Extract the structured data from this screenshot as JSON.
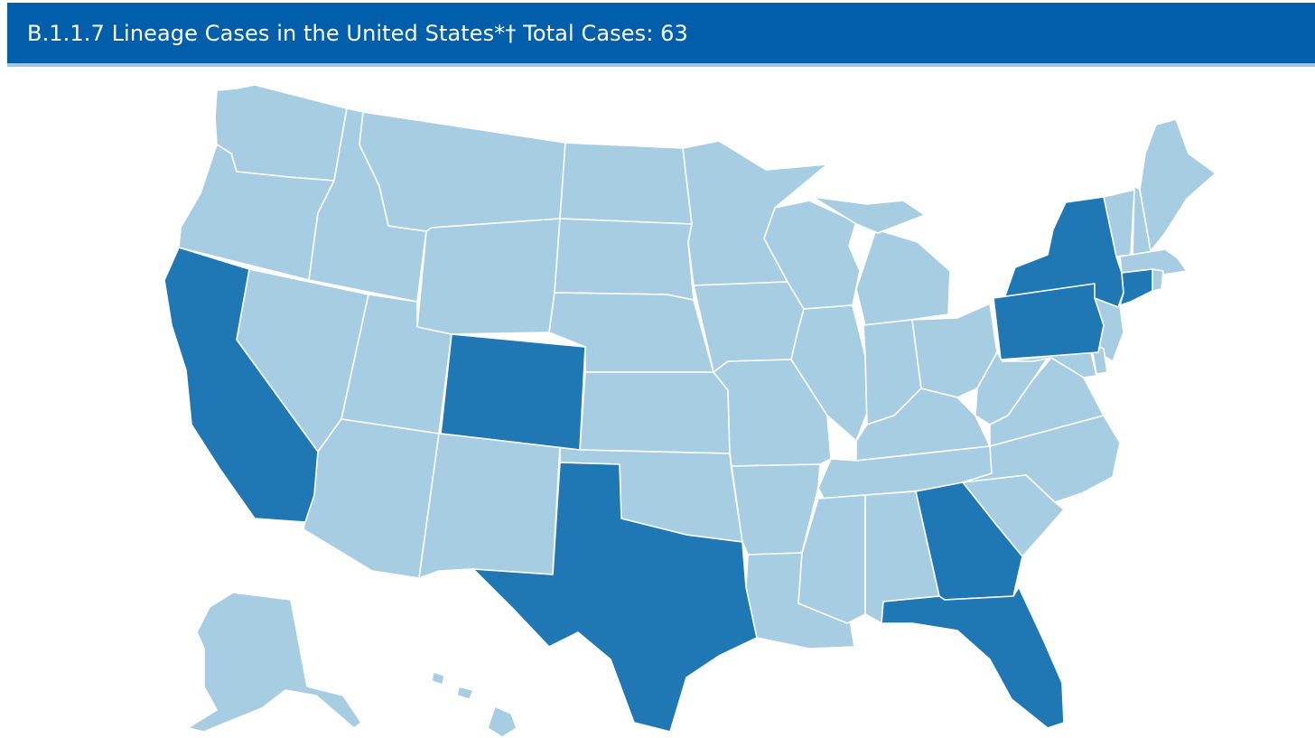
{
  "title": {
    "text": "B.1.1.7 Lineage Cases in the United States*† Total Cases: 63"
  },
  "colors": {
    "title_bar": "#005EAA",
    "title_underline": "#9CC9E8",
    "no_reported_cases": "#A6CDE2",
    "reported_cases": "#1F78B4",
    "border": "#FFFFFF"
  },
  "map": {
    "shaded_states": [
      "California",
      "Colorado",
      "Texas",
      "New York",
      "Pennsylvania",
      "Connecticut",
      "Georgia",
      "Florida"
    ],
    "unshaded_states": [
      "Washington",
      "Oregon",
      "Idaho",
      "Montana",
      "Wyoming",
      "Nevada",
      "Utah",
      "Arizona",
      "New Mexico",
      "North Dakota",
      "South Dakota",
      "Nebraska",
      "Kansas",
      "Oklahoma",
      "Minnesota",
      "Iowa",
      "Missouri",
      "Arkansas",
      "Louisiana",
      "Wisconsin",
      "Illinois",
      "Michigan",
      "Indiana",
      "Ohio",
      "Kentucky",
      "Tennessee",
      "Mississippi",
      "Alabama",
      "West Virginia",
      "Virginia",
      "North Carolina",
      "South Carolina",
      "New Jersey",
      "Delaware",
      "Maryland",
      "Maine",
      "Vermont",
      "New Hampshire",
      "Massachusetts",
      "Rhode Island",
      "Alaska",
      "Hawaii"
    ]
  }
}
